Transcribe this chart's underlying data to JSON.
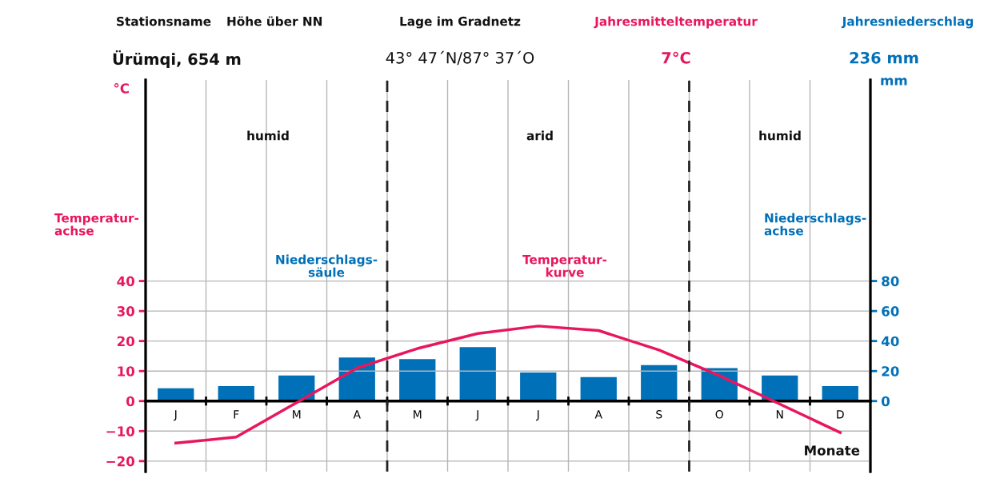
{
  "chart_data": {
    "type": "bar",
    "categories": [
      "J",
      "F",
      "M",
      "A",
      "M",
      "J",
      "J",
      "A",
      "S",
      "O",
      "N",
      "D"
    ],
    "series": [
      {
        "name": null,
        "axis": "y2",
        "color": "#0070b8",
        "values": [
          8.5,
          10,
          17,
          29,
          28,
          36,
          19,
          16,
          24,
          22,
          17,
          10
        ]
      },
      {
        "name": null,
        "type": "line",
        "axis": "y",
        "color": "#e8175d",
        "values": [
          -14,
          -12,
          -0.5,
          11,
          17.5,
          22.5,
          25,
          23.5,
          17,
          8.5,
          -1,
          -10.5
        ]
      }
    ],
    "xlabel": "Monate",
    "ylabel": "°C",
    "y2label": "mm",
    "ylim": [
      -23.5,
      107
    ],
    "yticks": [
      -20,
      -10,
      0,
      10,
      20,
      30,
      40
    ],
    "y2lim": [
      -47,
      214
    ],
    "y2ticks": [
      0,
      20,
      40,
      60,
      80
    ],
    "annotations": [
      "Stationsname",
      "Höhe über NN",
      "Ürümqi, 654 m",
      "Lage im Gradnetz",
      "43° 47´N/87° 37´O",
      "Jahresmitteltemperatur",
      "7°C",
      "Jahresniederschlag",
      "236 mm",
      "humid",
      "arid",
      "humid",
      "Temperatur-\nachse",
      "Niederschlags-\nachse",
      "Niederschlags-\nsäule",
      "Temperatur-\nkurve"
    ],
    "grid": true,
    "legend": false
  }
}
